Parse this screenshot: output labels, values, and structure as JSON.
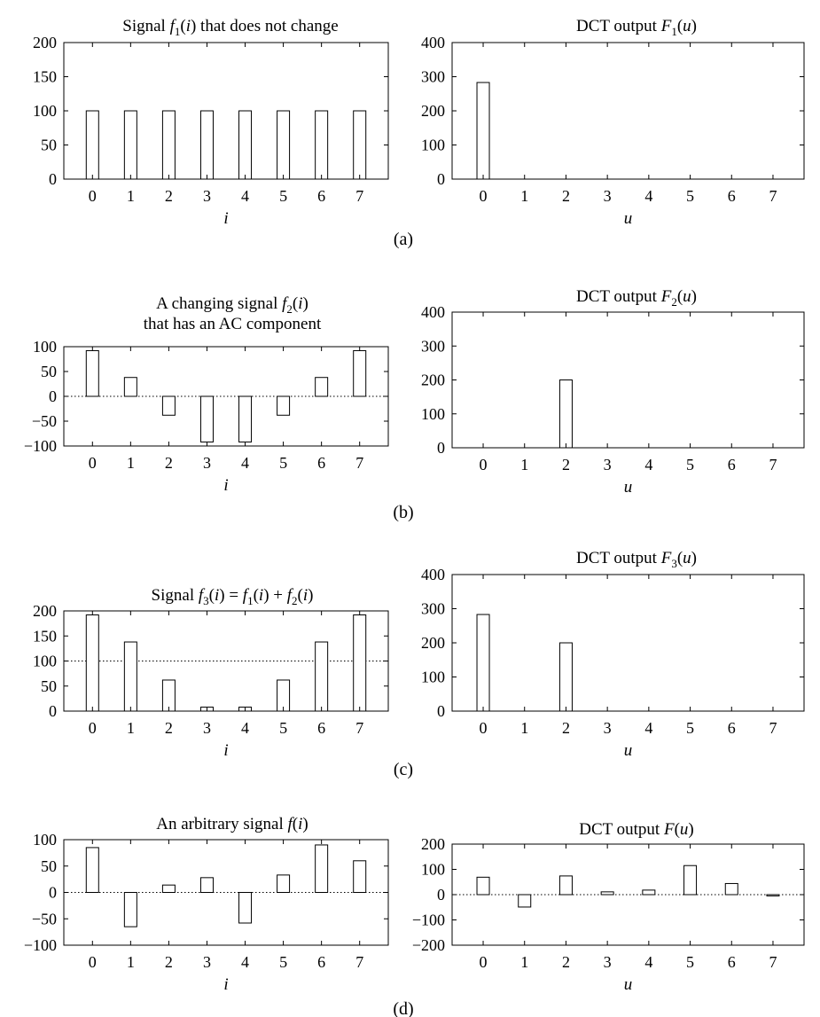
{
  "chart_data": [
    {
      "type": "bar",
      "title_lines": [
        [
          "Signal ",
          {
            "v": "f",
            "sub": "1",
            "post": "(i)"
          },
          " that does not change"
        ]
      ],
      "title_text": "Signal f1(i) that does not change",
      "xlabel": "i",
      "categories": [
        "0",
        "1",
        "2",
        "3",
        "4",
        "5",
        "6",
        "7"
      ],
      "values": [
        100,
        100,
        100,
        100,
        100,
        100,
        100,
        100
      ],
      "ylim": [
        0,
        200
      ],
      "yticks": [
        "0",
        "50",
        "100",
        "150",
        "200"
      ],
      "ytick_values": [
        0,
        50,
        100,
        150,
        200
      ],
      "reference_line": null
    },
    {
      "type": "bar",
      "title_text": "DCT output F1(u)",
      "xlabel": "u",
      "categories": [
        "0",
        "1",
        "2",
        "3",
        "4",
        "5",
        "6",
        "7"
      ],
      "values": [
        283,
        0,
        0,
        0,
        0,
        0,
        0,
        0
      ],
      "ylim": [
        0,
        400
      ],
      "yticks": [
        "0",
        "100",
        "200",
        "300",
        "400"
      ],
      "ytick_values": [
        0,
        100,
        200,
        300,
        400
      ],
      "reference_line": null
    },
    {
      "type": "bar",
      "title_text": "A changing signal f2(i) that has an AC component",
      "xlabel": "i",
      "categories": [
        "0",
        "1",
        "2",
        "3",
        "4",
        "5",
        "6",
        "7"
      ],
      "values": [
        92,
        38,
        -38,
        -92,
        -92,
        -38,
        38,
        92
      ],
      "ylim": [
        -100,
        100
      ],
      "yticks": [
        "−100",
        "−50",
        "0",
        "50",
        "100"
      ],
      "ytick_values": [
        -100,
        -50,
        0,
        50,
        100
      ],
      "reference_line": 0
    },
    {
      "type": "bar",
      "title_text": "DCT output F2(u)",
      "xlabel": "u",
      "categories": [
        "0",
        "1",
        "2",
        "3",
        "4",
        "5",
        "6",
        "7"
      ],
      "values": [
        0,
        0,
        200,
        0,
        0,
        0,
        0,
        0
      ],
      "ylim": [
        0,
        400
      ],
      "yticks": [
        "0",
        "100",
        "200",
        "300",
        "400"
      ],
      "ytick_values": [
        0,
        100,
        200,
        300,
        400
      ],
      "reference_line": null
    },
    {
      "type": "bar",
      "title_text": "Signal f3(i) = f1(i) + f2(i)",
      "xlabel": "i",
      "categories": [
        "0",
        "1",
        "2",
        "3",
        "4",
        "5",
        "6",
        "7"
      ],
      "values": [
        192,
        138,
        62,
        8,
        8,
        62,
        138,
        192
      ],
      "ylim": [
        0,
        200
      ],
      "yticks": [
        "0",
        "50",
        "100",
        "150",
        "200"
      ],
      "ytick_values": [
        0,
        50,
        100,
        150,
        200
      ],
      "reference_line": 100
    },
    {
      "type": "bar",
      "title_text": "DCT output F3(u)",
      "xlabel": "u",
      "categories": [
        "0",
        "1",
        "2",
        "3",
        "4",
        "5",
        "6",
        "7"
      ],
      "values": [
        283,
        0,
        200,
        0,
        0,
        0,
        0,
        0
      ],
      "ylim": [
        0,
        400
      ],
      "yticks": [
        "0",
        "100",
        "200",
        "300",
        "400"
      ],
      "ytick_values": [
        0,
        100,
        200,
        300,
        400
      ],
      "reference_line": null
    },
    {
      "type": "bar",
      "title_text": "An arbitrary signal f(i)",
      "xlabel": "i",
      "categories": [
        "0",
        "1",
        "2",
        "3",
        "4",
        "5",
        "6",
        "7"
      ],
      "values": [
        85,
        -65,
        14,
        28,
        -58,
        33,
        90,
        60
      ],
      "ylim": [
        -100,
        100
      ],
      "yticks": [
        "−100",
        "−50",
        "0",
        "50",
        "100"
      ],
      "ytick_values": [
        -100,
        -50,
        0,
        50,
        100
      ],
      "reference_line": 0
    },
    {
      "type": "bar",
      "title_text": "DCT output F(u)",
      "xlabel": "u",
      "categories": [
        "0",
        "1",
        "2",
        "3",
        "4",
        "5",
        "6",
        "7"
      ],
      "values": [
        69,
        -49,
        74,
        11,
        18,
        115,
        44,
        -5
      ],
      "ylim": [
        -200,
        200
      ],
      "yticks": [
        "−200",
        "−100",
        "0",
        "100",
        "200"
      ],
      "ytick_values": [
        -200,
        -100,
        0,
        100,
        200
      ],
      "reference_line": 0
    }
  ],
  "captions": [
    "(a)",
    "(b)",
    "(c)",
    "(d)"
  ]
}
